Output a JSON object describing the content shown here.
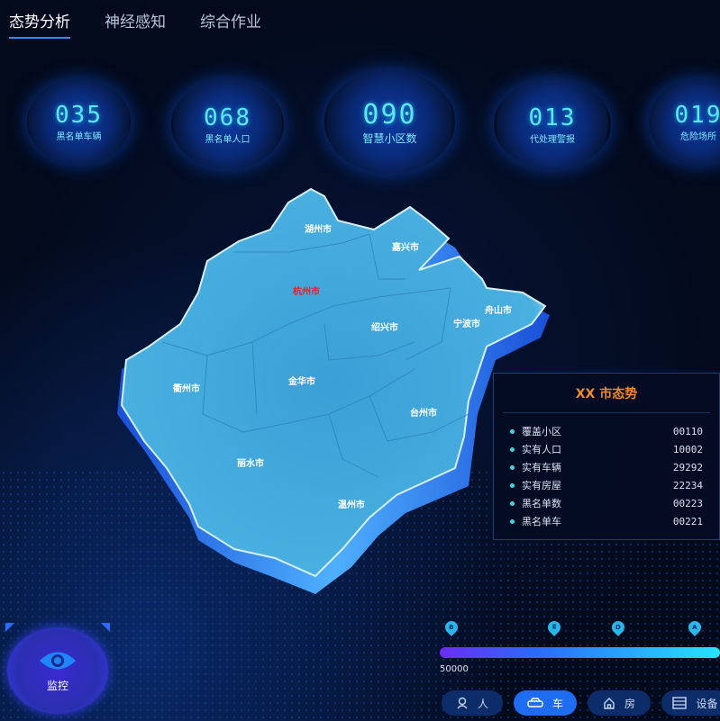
{
  "tabs": [
    {
      "label": "态势分析",
      "active": true
    },
    {
      "label": "神经感知",
      "active": false
    },
    {
      "label": "综合作业",
      "active": false
    }
  ],
  "stats": [
    {
      "value": "035",
      "label": "黑名单车辆"
    },
    {
      "value": "068",
      "label": "黑名单人口"
    },
    {
      "value": "090",
      "label": "智慧小区数"
    },
    {
      "value": "013",
      "label": "代处理警报"
    },
    {
      "value": "019",
      "label": "危险场所"
    }
  ],
  "map": {
    "cities": [
      "湖州市",
      "嘉兴市",
      "杭州市",
      "舟山市",
      "绍兴市",
      "宁波市",
      "衢州市",
      "金华市",
      "台州市",
      "丽水市",
      "温州市"
    ],
    "highlight": "杭州市",
    "highlight_color": "#e0242a",
    "fill_color": "#3aa3d8"
  },
  "panel": {
    "title": "XX 市态势",
    "rows": [
      {
        "label": "覆盖小区",
        "value": "00110"
      },
      {
        "label": "实有人口",
        "value": "10002"
      },
      {
        "label": "实有车辆",
        "value": "29292"
      },
      {
        "label": "实有房屋",
        "value": "22234"
      },
      {
        "label": "黑名单数",
        "value": "00223"
      },
      {
        "label": "黑名单车",
        "value": "00221"
      }
    ]
  },
  "timeline": {
    "markers": [
      "B",
      "E",
      "D",
      "A"
    ],
    "value": "50000"
  },
  "filters": [
    {
      "label": "人",
      "icon": "person-icon",
      "active": false
    },
    {
      "label": "车",
      "icon": "car-icon",
      "active": true
    },
    {
      "label": "房",
      "icon": "house-icon",
      "active": false
    },
    {
      "label": "设备",
      "icon": "device-icon",
      "active": false
    }
  ],
  "monitor": {
    "label": "监控",
    "icon": "eye-icon"
  }
}
